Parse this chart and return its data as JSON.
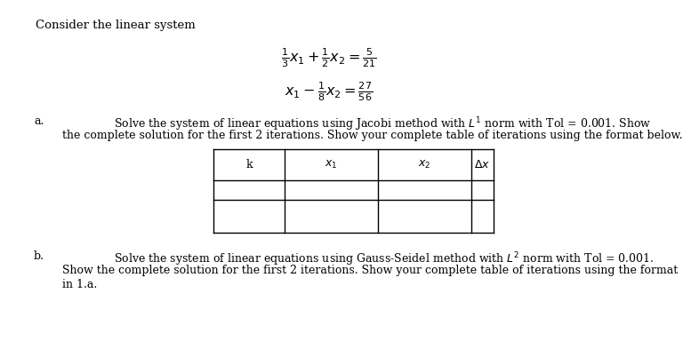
{
  "title": "Consider the linear system",
  "bg_color": "#ffffff",
  "text_color": "#000000",
  "font_size_body": 9.0,
  "font_size_title": 9.5,
  "font_size_eq": 11.5,
  "label_a": "a.",
  "label_b": "b.",
  "text_a1": "Solve the system of linear equations using Jacobi method with $L^1$ norm with Tol = 0.001. Show",
  "text_a2": "the complete solution for the first 2 iterations. Show your complete table of iterations using the format below.",
  "text_b1": "Solve the system of linear equations using Gauss-Seidel method with $L^2$ norm with Tol = 0.001.",
  "text_b2": "Show the complete solution for the first 2 iterations. Show your complete table of iterations using the format",
  "text_b3": "in 1.a.",
  "table_headers": [
    "k",
    "$x_1$",
    "$x_2$",
    "$\\Delta x$"
  ],
  "eq1": "$\\frac{1}{3}x_1 + \\frac{1}{2}x_2 = \\frac{5}{21}$",
  "eq2": "$x_1 - \\frac{1}{8}x_2 = \\frac{27}{56}$"
}
